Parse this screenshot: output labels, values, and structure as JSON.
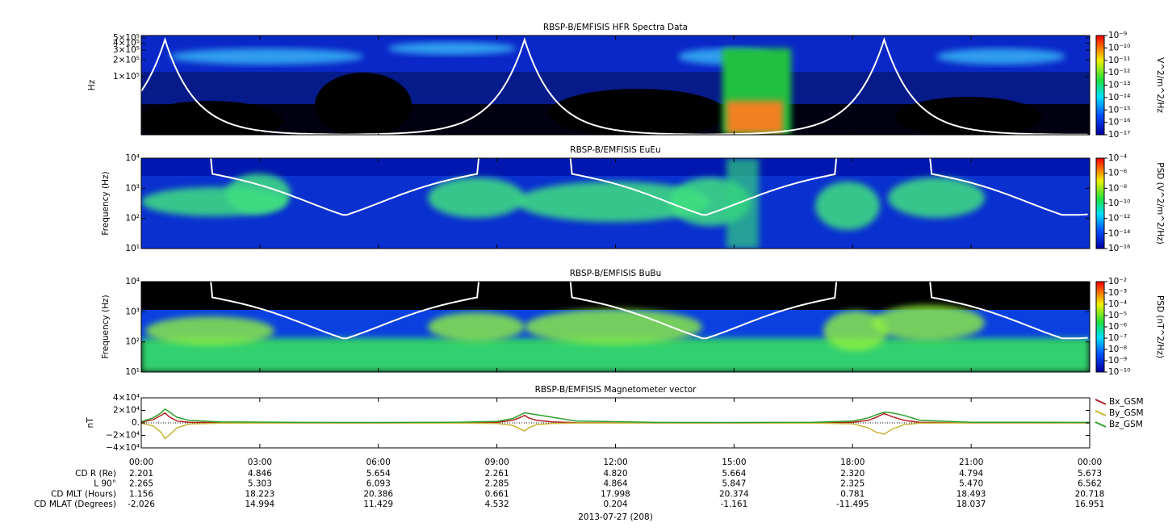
{
  "chart_data": [
    {
      "type": "spectrogram",
      "title": "RBSP-B/EMFISIS  HFR Spectra Data",
      "ylabel": "Hz",
      "log": true,
      "ylim": [
        9000,
        550000
      ],
      "yticks": [
        {
          "value": 100000,
          "label": "1×10⁵"
        },
        {
          "value": 200000,
          "label": "2×10⁵"
        },
        {
          "value": 300000,
          "label": "3×10⁵"
        },
        {
          "value": 400000,
          "label": "4×10⁵"
        },
        {
          "value": 500000,
          "label": "5×10⁵"
        }
      ],
      "zlabel": "V^2/m^2/Hz",
      "zlog": true,
      "zlim": [
        1e-17,
        1e-09
      ],
      "zticks": [
        {
          "value": 1e-09,
          "label": "10⁻⁹"
        },
        {
          "value": 1e-10,
          "label": "10⁻¹⁰"
        },
        {
          "value": 1e-11,
          "label": "10⁻¹¹"
        },
        {
          "value": 1e-12,
          "label": "10⁻¹²"
        },
        {
          "value": 1e-13,
          "label": "10⁻¹³"
        },
        {
          "value": 1e-14,
          "label": "10⁻¹⁴"
        },
        {
          "value": 1e-15,
          "label": "10⁻¹⁵"
        },
        {
          "value": 1e-16,
          "label": "10⁻¹⁶"
        },
        {
          "value": 1e-17,
          "label": "10⁻¹⁷"
        }
      ]
    },
    {
      "type": "spectrogram",
      "title": "RBSP-B/EMFISIS  EuEu",
      "ylabel": "Frequency (Hz)",
      "log": true,
      "ylim": [
        10,
        10000
      ],
      "yticks": [
        {
          "value": 10,
          "label": "10¹"
        },
        {
          "value": 100,
          "label": "10²"
        },
        {
          "value": 1000,
          "label": "10³"
        },
        {
          "value": 10000,
          "label": "10⁴"
        }
      ],
      "zlabel": "PSD (V^2/m^2/Hz)",
      "zlog": true,
      "zlim": [
        1e-16,
        0.0001
      ],
      "zticks": [
        {
          "value": 0.0001,
          "label": "10⁻⁴"
        },
        {
          "value": 1e-06,
          "label": "10⁻⁶"
        },
        {
          "value": 1e-08,
          "label": "10⁻⁸"
        },
        {
          "value": 1e-10,
          "label": "10⁻¹⁰"
        },
        {
          "value": 1e-12,
          "label": "10⁻¹²"
        },
        {
          "value": 1e-14,
          "label": "10⁻¹⁴"
        },
        {
          "value": 1e-16,
          "label": "10⁻¹⁶"
        }
      ]
    },
    {
      "type": "spectrogram",
      "title": "RBSP-B/EMFISIS  BuBu",
      "ylabel": "Frequency (Hz)",
      "log": true,
      "ylim": [
        10,
        10000
      ],
      "yticks": [
        {
          "value": 10,
          "label": "10¹"
        },
        {
          "value": 100,
          "label": "10²"
        },
        {
          "value": 1000,
          "label": "10³"
        },
        {
          "value": 10000,
          "label": "10⁴"
        }
      ],
      "zlabel": "PSD (nT^2/Hz)",
      "zlog": true,
      "zlim": [
        1e-10,
        0.01
      ],
      "zticks": [
        {
          "value": 0.01,
          "label": "10⁻²"
        },
        {
          "value": 0.001,
          "label": "10⁻³"
        },
        {
          "value": 0.0001,
          "label": "10⁻⁴"
        },
        {
          "value": 1e-05,
          "label": "10⁻⁵"
        },
        {
          "value": 1e-06,
          "label": "10⁻⁶"
        },
        {
          "value": 1e-07,
          "label": "10⁻⁷"
        },
        {
          "value": 1e-08,
          "label": "10⁻⁸"
        },
        {
          "value": 1e-09,
          "label": "10⁻⁹"
        },
        {
          "value": 1e-10,
          "label": "10⁻¹⁰"
        }
      ]
    },
    {
      "type": "line",
      "title": "RBSP-B/EMFISIS  Magnetometer vector",
      "ylabel": "nT",
      "xlabel": "2013-07-27 (208)",
      "xlim": [
        0,
        24
      ],
      "xticks": [
        {
          "value": 0,
          "label": "00:00"
        },
        {
          "value": 3,
          "label": "03:00"
        },
        {
          "value": 6,
          "label": "06:00"
        },
        {
          "value": 9,
          "label": "09:00"
        },
        {
          "value": 12,
          "label": "12:00"
        },
        {
          "value": 15,
          "label": "15:00"
        },
        {
          "value": 18,
          "label": "18:00"
        },
        {
          "value": 21,
          "label": "21:00"
        },
        {
          "value": 24,
          "label": "00:00"
        }
      ],
      "ylim": [
        -40000,
        40000
      ],
      "yticks": [
        {
          "value": -40000,
          "label": "−4×10⁴"
        },
        {
          "value": -20000,
          "label": "−2×10⁴"
        },
        {
          "value": 0,
          "label": "0."
        },
        {
          "value": 20000,
          "label": "2×10⁴"
        },
        {
          "value": 40000,
          "label": "4×10⁴"
        }
      ],
      "x": [
        0,
        0.3,
        0.5,
        0.6,
        0.7,
        0.9,
        1.2,
        2,
        4,
        6,
        8,
        9,
        9.4,
        9.6,
        9.7,
        9.8,
        10,
        10.4,
        11,
        13,
        15,
        17,
        18,
        18.4,
        18.6,
        18.8,
        19,
        19.3,
        19.7,
        21,
        24
      ],
      "series": [
        {
          "name": "Bx_GSM",
          "color": "#b22222",
          "values": [
            1000,
            5000,
            12000,
            16000,
            10000,
            3000,
            1000,
            300,
            0,
            0,
            200,
            1000,
            4000,
            9000,
            12000,
            8000,
            4000,
            1500,
            300,
            0,
            0,
            200,
            1000,
            4000,
            9000,
            15000,
            10000,
            4000,
            800,
            0,
            0
          ]
        },
        {
          "name": "By_GSM",
          "color": "#c8b432",
          "values": [
            -500,
            -5000,
            -15000,
            -25000,
            -20000,
            -8000,
            -2000,
            -500,
            0,
            0,
            -200,
            -1000,
            -4000,
            -10000,
            -13000,
            -8000,
            -3000,
            -1000,
            -200,
            0,
            0,
            -200,
            -1500,
            -8000,
            -15000,
            -18000,
            -10000,
            -3000,
            -500,
            0,
            0
          ]
        },
        {
          "name": "Bz_GSM",
          "color": "#2ca02c",
          "values": [
            2000,
            8000,
            16000,
            22000,
            18000,
            9000,
            4000,
            1500,
            800,
            600,
            1000,
            2500,
            7000,
            13000,
            16000,
            15000,
            13000,
            9000,
            3000,
            800,
            600,
            900,
            3000,
            8000,
            13000,
            17000,
            16000,
            12000,
            4000,
            1000,
            800
          ]
        }
      ]
    }
  ],
  "ephemeris": {
    "labels": [
      "CD R (Re)",
      "L 90°",
      "CD MLT (Hours)",
      "CD MLAT (Degrees)"
    ],
    "rows": [
      [
        "2.201",
        "4.846",
        "5.654",
        "2.261",
        "4.820",
        "5.664",
        "2.320",
        "4.794",
        "5.673"
      ],
      [
        "2.265",
        "5.303",
        "6.093",
        "2.285",
        "4.864",
        "5.847",
        "2.325",
        "5.470",
        "6.562"
      ],
      [
        "1.156",
        "18.223",
        "20.386",
        "0.661",
        "17.998",
        "20.374",
        "0.781",
        "18.493",
        "20.718"
      ],
      [
        "-2.026",
        "14.994",
        "11.429",
        "4.532",
        "0.204",
        "-1.161",
        "-11.495",
        "18.037",
        "16.951"
      ]
    ]
  }
}
